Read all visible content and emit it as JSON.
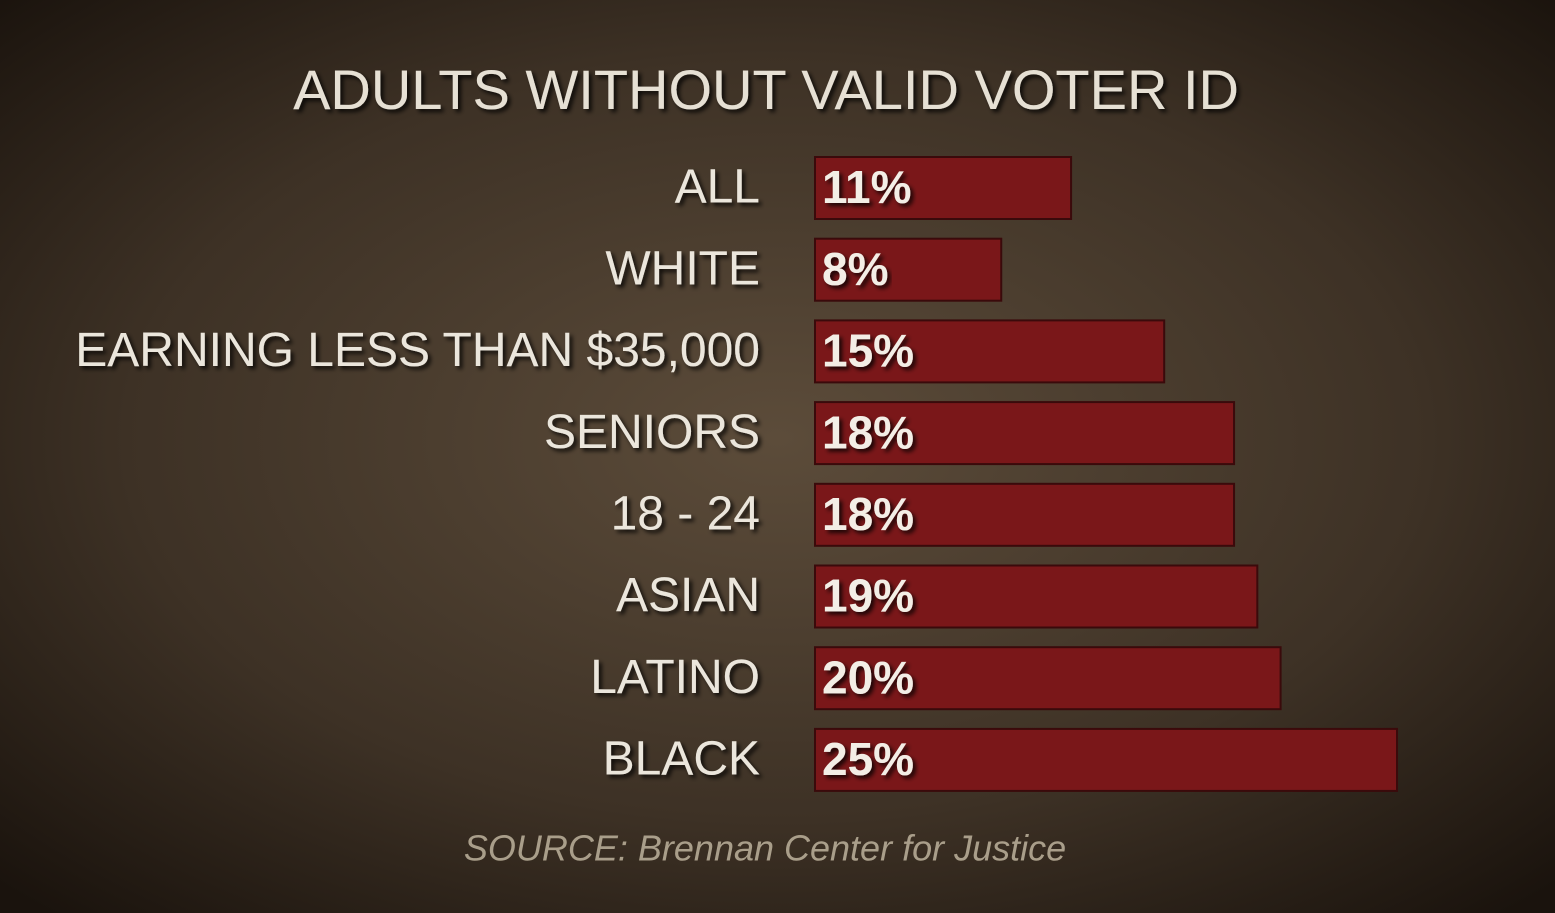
{
  "chart_data": {
    "type": "bar",
    "orientation": "horizontal",
    "title": "ADULTS WITHOUT VALID VOTER ID",
    "categories": [
      "ALL",
      "WHITE",
      "EARNING LESS THAN $35,000",
      "SENIORS",
      "18 - 24",
      "ASIAN",
      "LATINO",
      "BLACK"
    ],
    "values": [
      11,
      8,
      15,
      18,
      18,
      19,
      20,
      25
    ],
    "value_labels": [
      "11%",
      "8%",
      "15%",
      "18%",
      "18%",
      "19%",
      "20%",
      "25%"
    ],
    "color": "#7a1719",
    "source": "SOURCE: Brennan Center for Justice"
  }
}
